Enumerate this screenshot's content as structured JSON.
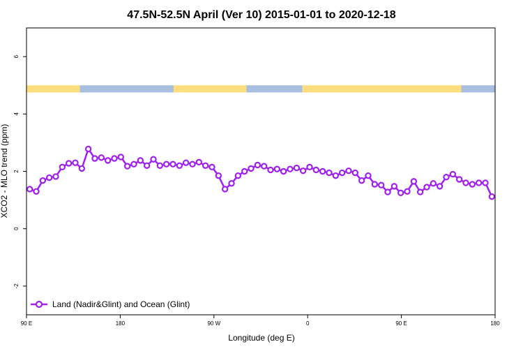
{
  "chart_data": {
    "type": "line",
    "title": "47.5N-52.5N April (Ver 10)   2015-01-01 to 2020-12-18",
    "xlabel": "Longitude (deg E)",
    "ylabel": "XCO2 - MLO trend (ppm)",
    "xlim": [
      90,
      450
    ],
    "ylim": [
      -3,
      7
    ],
    "x_ticks": [
      {
        "value": 90,
        "label": "90 E"
      },
      {
        "value": 162,
        "label": "180"
      },
      {
        "value": 234,
        "label": "90 W"
      },
      {
        "value": 306,
        "label": "0"
      },
      {
        "value": 378,
        "label": "90 E"
      },
      {
        "value": 450,
        "label": "180"
      }
    ],
    "y_ticks": [
      {
        "value": -2,
        "label": "-2"
      },
      {
        "value": 0,
        "label": "0"
      },
      {
        "value": 2,
        "label": "2"
      },
      {
        "value": 4,
        "label": "4"
      },
      {
        "value": 6,
        "label": "6"
      }
    ],
    "legend": {
      "position": "bottom-left",
      "label": "Land (Nadir&Glint) and Ocean (Glint)"
    },
    "series": [
      {
        "name": "Land (Nadir&Glint) and Ocean (Glint)",
        "color": "#a020f0",
        "x": [
          92.5,
          97.5,
          102.5,
          107.5,
          112.5,
          117.5,
          122.5,
          127.5,
          132.5,
          137.5,
          142.5,
          147.5,
          152.5,
          157.5,
          162.5,
          167.5,
          172.5,
          177.5,
          182.5,
          187.5,
          192.5,
          197.5,
          202.5,
          207.5,
          212.5,
          217.5,
          222.5,
          227.5,
          232.5,
          237.5,
          242.5,
          247.5,
          252.5,
          257.5,
          262.5,
          267.5,
          272.5,
          277.5,
          282.5,
          287.5,
          292.5,
          297.5,
          302.5,
          307.5,
          312.5,
          317.5,
          322.5,
          327.5,
          332.5,
          337.5,
          342.5,
          347.5,
          352.5,
          357.5,
          362.5,
          367.5,
          372.5,
          377.5,
          382.5,
          387.5,
          392.5,
          397.5,
          402.5,
          407.5,
          412.5,
          417.5,
          422.5,
          427.5,
          432.5,
          437.5,
          442.5,
          447.5
        ],
        "y": [
          1.38,
          1.3,
          1.68,
          1.78,
          1.82,
          2.15,
          2.28,
          2.3,
          2.1,
          2.78,
          2.45,
          2.48,
          2.38,
          2.45,
          2.5,
          2.18,
          2.25,
          2.38,
          2.2,
          2.42,
          2.2,
          2.25,
          2.25,
          2.2,
          2.3,
          2.25,
          2.32,
          2.2,
          2.15,
          1.85,
          1.38,
          1.58,
          1.85,
          2.0,
          2.1,
          2.22,
          2.18,
          2.05,
          2.08,
          2.0,
          2.08,
          2.12,
          2.02,
          2.15,
          2.05,
          2.0,
          1.95,
          1.85,
          1.95,
          2.02,
          1.95,
          1.68,
          1.85,
          1.55,
          1.52,
          1.28,
          1.48,
          1.25,
          1.3,
          1.65,
          1.28,
          1.45,
          1.58,
          1.48,
          1.8,
          1.9,
          1.72,
          1.6,
          1.55,
          1.6,
          1.6,
          1.12
        ]
      }
    ],
    "surface_band": {
      "y_bottom": 4.75,
      "y_top": 5.0,
      "land_color": "#fedd7e",
      "ocean_color": "#a9bfdf",
      "segments": [
        {
          "type": "land",
          "from": 90,
          "to": 131
        },
        {
          "type": "ocean",
          "from": 131,
          "to": 203
        },
        {
          "type": "land",
          "from": 203,
          "to": 259
        },
        {
          "type": "ocean",
          "from": 259,
          "to": 302
        },
        {
          "type": "land",
          "from": 302,
          "to": 424
        },
        {
          "type": "ocean",
          "from": 424,
          "to": 450
        }
      ]
    }
  }
}
